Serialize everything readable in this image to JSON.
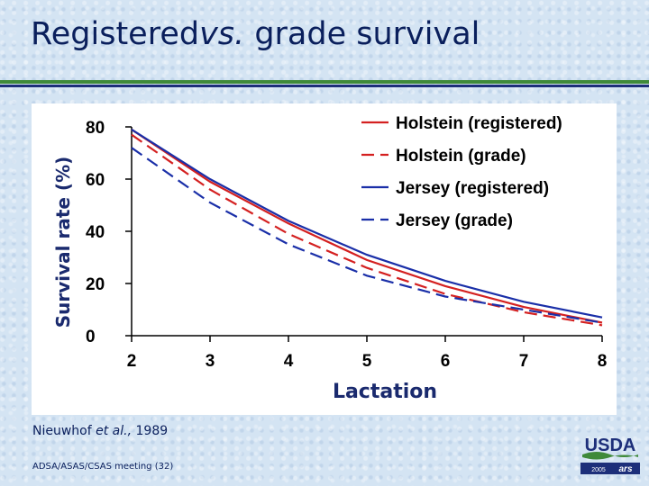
{
  "slide": {
    "title_part1": "Registered",
    "title_italic": "vs.",
    "title_part2": "grade survival",
    "citation_author": "Nieuwhof",
    "citation_etal": "et al.,",
    "citation_year": "1989",
    "meeting": "ADSA/ASAS/CSAS meeting (32)"
  },
  "logo": {
    "agency": "USDA",
    "year": "2005",
    "mark": "ars"
  },
  "colors": {
    "title": "#0a1f5c",
    "holstein": "#d42020",
    "jersey": "#1a2fa8",
    "accent_green": "#3f8a3a"
  },
  "chart_data": {
    "type": "line",
    "title": "",
    "xlabel": "Lactation",
    "ylabel": "Survival rate (%)",
    "xlim": [
      2,
      8
    ],
    "ylim": [
      0,
      80
    ],
    "x_ticks": [
      2,
      3,
      4,
      5,
      6,
      7,
      8
    ],
    "y_ticks": [
      0,
      20,
      40,
      60,
      80
    ],
    "grid": false,
    "legend_position": "top-right",
    "x": [
      2,
      3,
      4,
      5,
      6,
      7,
      8
    ],
    "series": [
      {
        "name": "Holstein (registered)",
        "color": "#d42020",
        "dash": "solid",
        "values": [
          79,
          59,
          43,
          29,
          19,
          11,
          5
        ]
      },
      {
        "name": "Holstein (grade)",
        "color": "#d42020",
        "dash": "dashed",
        "values": [
          77,
          56,
          39,
          26,
          16,
          9,
          4
        ]
      },
      {
        "name": "Jersey (registered)",
        "color": "#1a2fa8",
        "dash": "solid",
        "values": [
          79,
          60,
          44,
          31,
          21,
          13,
          7
        ]
      },
      {
        "name": "Jersey (grade)",
        "color": "#1a2fa8",
        "dash": "dashed",
        "values": [
          72,
          51,
          35,
          23,
          15,
          10,
          5
        ]
      }
    ]
  }
}
